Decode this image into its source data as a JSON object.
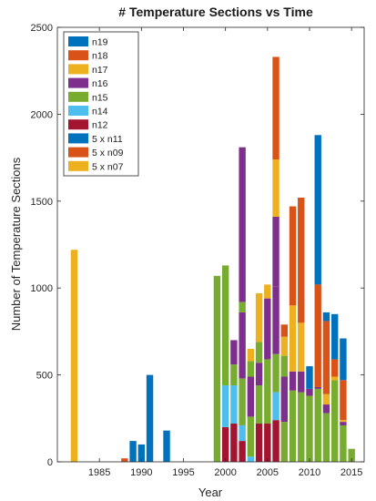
{
  "chart_data": {
    "type": "bar",
    "stacked": true,
    "title": "# Temperature Sections vs Time",
    "xlabel": "Year",
    "ylabel": "Number of Temperature Sections",
    "xlim": [
      1980,
      2016.5
    ],
    "ylim": [
      0,
      2500
    ],
    "x_ticks": [
      1985,
      1990,
      1995,
      2000,
      2005,
      2010,
      2015
    ],
    "y_ticks": [
      0,
      500,
      1000,
      1500,
      2000,
      2500
    ],
    "grid": false,
    "legend_position": "top-left",
    "years": [
      1982,
      1988,
      1989,
      1990,
      1991,
      1993,
      1999,
      2000,
      2001,
      2002,
      2003,
      2004,
      2005,
      2006,
      2007,
      2008,
      2009,
      2010,
      2011,
      2012,
      2013,
      2014,
      2015
    ],
    "series": [
      {
        "name": "n19",
        "color": "#0072BD",
        "values": [
          0,
          0,
          0,
          0,
          0,
          0,
          0,
          0,
          0,
          0,
          0,
          0,
          0,
          0,
          0,
          0,
          0,
          0,
          0,
          0,
          0,
          0,
          0
        ]
      },
      {
        "name": "n18",
        "color": "#D95319",
        "values": [
          0,
          0,
          0,
          0,
          0,
          0,
          0,
          0,
          0,
          0,
          0,
          0,
          0,
          0,
          0,
          0,
          0,
          0,
          0,
          0,
          0,
          0,
          0
        ]
      },
      {
        "name": "n17",
        "color": "#EDB120",
        "values": [
          0,
          0,
          0,
          0,
          0,
          0,
          0,
          0,
          0,
          0,
          0,
          0,
          0,
          0,
          0,
          0,
          0,
          0,
          0,
          0,
          0,
          0,
          0
        ]
      },
      {
        "name": "n16",
        "color": "#7E2F8E",
        "values": [
          0,
          0,
          0,
          0,
          0,
          0,
          0,
          0,
          0,
          0,
          0,
          0,
          0,
          0,
          0,
          0,
          0,
          0,
          0,
          0,
          0,
          0,
          0
        ]
      },
      {
        "name": "n15",
        "color": "#77AC30",
        "values": [
          0,
          0,
          0,
          0,
          0,
          0,
          0,
          0,
          0,
          0,
          0,
          0,
          0,
          0,
          0,
          0,
          0,
          0,
          0,
          0,
          0,
          0,
          0
        ]
      },
      {
        "name": "n14",
        "color": "#4DBEEE",
        "values": [
          0,
          0,
          0,
          0,
          0,
          0,
          0,
          0,
          0,
          0,
          0,
          0,
          0,
          0,
          0,
          0,
          0,
          0,
          0,
          0,
          0,
          0,
          0
        ]
      },
      {
        "name": "n12",
        "color": "#A2142F",
        "values": [
          0,
          0,
          0,
          0,
          0,
          0,
          0,
          0,
          0,
          0,
          0,
          0,
          0,
          0,
          0,
          0,
          0,
          0,
          0,
          0,
          0,
          0,
          0
        ]
      },
      {
        "name": "5 x n11",
        "color": "#0072BD",
        "values": [
          0,
          0,
          0,
          0,
          0,
          0,
          0,
          0,
          0,
          0,
          0,
          0,
          0,
          0,
          0,
          0,
          0,
          0,
          0,
          0,
          0,
          0,
          0
        ]
      },
      {
        "name": "5 x n09",
        "color": "#D95319",
        "values": [
          0,
          0,
          0,
          0,
          0,
          0,
          0,
          0,
          0,
          0,
          0,
          0,
          0,
          0,
          0,
          0,
          0,
          0,
          0,
          0,
          0,
          0,
          0
        ]
      },
      {
        "name": "5 x n07",
        "color": "#EDB120",
        "values": [
          0,
          0,
          0,
          0,
          0,
          0,
          0,
          0,
          0,
          0,
          0,
          0,
          0,
          0,
          0,
          0,
          0,
          0,
          0,
          0,
          0,
          0,
          0
        ]
      }
    ],
    "stacks": [
      {
        "year": 1982,
        "segments": [
          [
            "5 x n07",
            1220
          ]
        ]
      },
      {
        "year": 1988,
        "segments": [
          [
            "5 x n09",
            20
          ]
        ]
      },
      {
        "year": 1989,
        "segments": [
          [
            "5 x n11",
            120
          ]
        ]
      },
      {
        "year": 1990,
        "segments": [
          [
            "5 x n11",
            100
          ]
        ]
      },
      {
        "year": 1991,
        "segments": [
          [
            "5 x n11",
            500
          ]
        ]
      },
      {
        "year": 1993,
        "segments": [
          [
            "5 x n11",
            180
          ]
        ]
      },
      {
        "year": 1999,
        "segments": [
          [
            "n15",
            1070
          ]
        ]
      },
      {
        "year": 2000,
        "segments": [
          [
            "n12",
            200
          ],
          [
            "n14",
            240
          ],
          [
            "n15",
            690
          ]
        ]
      },
      {
        "year": 2001,
        "segments": [
          [
            "n12",
            220
          ],
          [
            "n14",
            220
          ],
          [
            "n15",
            120
          ],
          [
            "n16",
            140
          ]
        ]
      },
      {
        "year": 2002,
        "segments": [
          [
            "n12",
            120
          ],
          [
            "n14",
            90
          ],
          [
            "n15",
            270
          ],
          [
            "n16",
            380
          ],
          [
            "n15",
            60
          ],
          [
            "n16",
            890
          ]
        ]
      },
      {
        "year": 2003,
        "segments": [
          [
            "n14",
            30
          ],
          [
            "n15",
            230
          ],
          [
            "n16",
            230
          ],
          [
            "n15",
            90
          ],
          [
            "n17",
            70
          ]
        ]
      },
      {
        "year": 2004,
        "segments": [
          [
            "n12",
            220
          ],
          [
            "n15",
            220
          ],
          [
            "n16",
            130
          ],
          [
            "n15",
            120
          ],
          [
            "n17",
            280
          ]
        ]
      },
      {
        "year": 2005,
        "segments": [
          [
            "n12",
            220
          ],
          [
            "n15",
            370
          ],
          [
            "n16",
            350
          ],
          [
            "n17",
            80
          ]
        ]
      },
      {
        "year": 2006,
        "segments": [
          [
            "n12",
            240
          ],
          [
            "n14",
            160
          ],
          [
            "n15",
            220
          ],
          [
            "n16",
            390
          ],
          [
            "n16",
            400
          ],
          [
            "n17",
            330
          ],
          [
            "n18",
            590
          ]
        ]
      },
      {
        "year": 2007,
        "segments": [
          [
            "n15",
            230
          ],
          [
            "n16",
            260
          ],
          [
            "n15",
            120
          ],
          [
            "n17",
            110
          ],
          [
            "n18",
            70
          ]
        ]
      },
      {
        "year": 2008,
        "segments": [
          [
            "n15",
            410
          ],
          [
            "n16",
            110
          ],
          [
            "n17",
            380
          ],
          [
            "n18",
            570
          ]
        ]
      },
      {
        "year": 2009,
        "segments": [
          [
            "n15",
            400
          ],
          [
            "n16",
            120
          ],
          [
            "n17",
            280
          ],
          [
            "n18",
            720
          ]
        ]
      },
      {
        "year": 2010,
        "segments": [
          [
            "n15",
            380
          ],
          [
            "n16",
            40
          ],
          [
            "n19",
            130
          ]
        ]
      },
      {
        "year": 2011,
        "segments": [
          [
            "n15",
            420
          ],
          [
            "n16",
            10
          ],
          [
            "n18",
            590
          ],
          [
            "n19",
            860
          ]
        ]
      },
      {
        "year": 2012,
        "segments": [
          [
            "n15",
            280
          ],
          [
            "n16",
            50
          ],
          [
            "n17",
            60
          ],
          [
            "n18",
            420
          ],
          [
            "n19",
            50
          ]
        ]
      },
      {
        "year": 2013,
        "segments": [
          [
            "n15",
            470
          ],
          [
            "n17",
            20
          ],
          [
            "n18",
            100
          ],
          [
            "n19",
            260
          ]
        ]
      },
      {
        "year": 2014,
        "segments": [
          [
            "n15",
            210
          ],
          [
            "n16",
            20
          ],
          [
            "n17",
            10
          ],
          [
            "n18",
            230
          ],
          [
            "n19",
            240
          ]
        ]
      },
      {
        "year": 2015,
        "segments": [
          [
            "n15",
            75
          ]
        ]
      }
    ]
  }
}
